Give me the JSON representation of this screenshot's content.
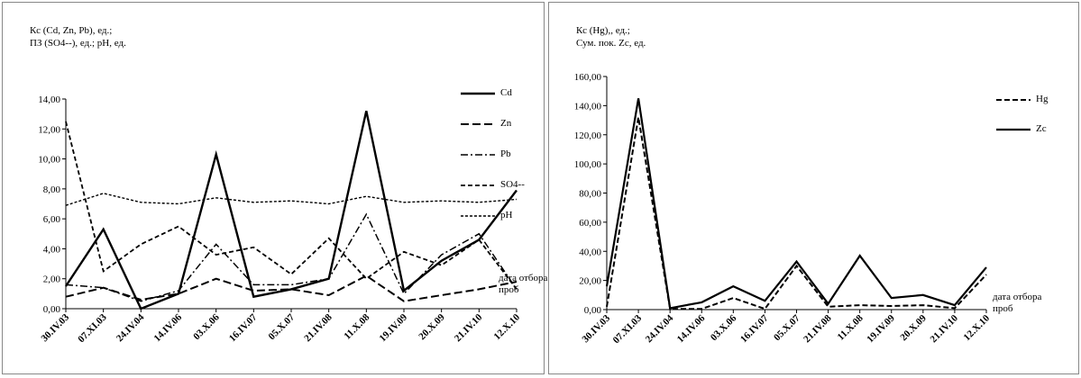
{
  "chart_data": [
    {
      "type": "line",
      "ylabel_lines": [
        "Кс (Cd, Zn, Pb),  ед.;",
        "ПЗ (SO4--), ед.; pH, ед."
      ],
      "xlabel_lines": [
        "дата отбора",
        "проб"
      ],
      "categories": [
        "30.IV.03",
        "07.XI.03",
        "24.IV.04",
        "14.IV.06",
        "03.X.06",
        "16.IV.07",
        "05.X.07",
        "21.IV.08",
        "11.X.08",
        "19.IV.09",
        "20.X.09",
        "21.IV.10",
        "12.X.10"
      ],
      "ylim": [
        0,
        14
      ],
      "yticks": [
        "0,00",
        "2,00",
        "4,00",
        "6,00",
        "8,00",
        "10,00",
        "12,00",
        "14,00"
      ],
      "legend_position": "right",
      "series": [
        {
          "name": "Cd",
          "values": [
            1.5,
            5.3,
            0.0,
            1.0,
            10.3,
            0.8,
            1.3,
            2.0,
            13.2,
            1.2,
            3.2,
            4.6,
            7.9
          ],
          "color": "#000000",
          "dash": "",
          "width": 2.4
        },
        {
          "name": "Zn",
          "values": [
            0.8,
            1.4,
            0.6,
            1.0,
            2.0,
            1.2,
            1.3,
            0.9,
            2.2,
            0.5,
            0.9,
            1.3,
            1.8
          ],
          "color": "#000000",
          "dash": "9,4",
          "width": 2
        },
        {
          "name": "Pb",
          "values": [
            1.6,
            1.4,
            0.5,
            1.2,
            4.3,
            1.6,
            1.6,
            2.0,
            6.3,
            1.0,
            3.6,
            5.0,
            1.3
          ],
          "color": "#000000",
          "dash": "8,3,2,3",
          "width": 1.5
        },
        {
          "name": "SO4--",
          "values": [
            12.5,
            2.5,
            4.3,
            5.5,
            3.6,
            4.1,
            2.3,
            4.7,
            2.0,
            3.8,
            2.9,
            4.6,
            1.3
          ],
          "color": "#000000",
          "dash": "5,3",
          "width": 1.8
        },
        {
          "name": "pH",
          "values": [
            6.9,
            7.7,
            7.1,
            7.0,
            7.4,
            7.1,
            7.2,
            7.0,
            7.5,
            7.1,
            7.2,
            7.1,
            7.3
          ],
          "color": "#000000",
          "dash": "3,2",
          "width": 1.4
        }
      ]
    },
    {
      "type": "line",
      "ylabel_lines": [
        "Кс (Hg),, ед.;",
        "Сум. пок. Zc, ед."
      ],
      "xlabel_lines": [
        "дата отбора",
        "проб"
      ],
      "categories": [
        "30.IV.03",
        "07.XI.03",
        "24.IV.04",
        "14.IV.06",
        "03.X.06",
        "16.IV.07",
        "05.X.07",
        "21.IV.08",
        "11.X.08",
        "19.IV.09",
        "20.X.09",
        "21.IV.10",
        "12.X.10"
      ],
      "ylim": [
        0,
        160
      ],
      "yticks": [
        "0,00",
        "20,00",
        "40,00",
        "60,00",
        "80,00",
        "100,00",
        "120,00",
        "140,00",
        "160,00"
      ],
      "legend_position": "right",
      "series": [
        {
          "name": "Hg",
          "values": [
            2,
            132,
            0.5,
            0.5,
            8,
            0.5,
            30,
            2,
            3,
            2.5,
            3,
            1,
            24
          ],
          "color": "#000000",
          "dash": "6,3",
          "width": 2
        },
        {
          "name": "Zc",
          "values": [
            16,
            145,
            1,
            5,
            16,
            6,
            33,
            4,
            37,
            8,
            10,
            3,
            29
          ],
          "color": "#000000",
          "dash": "",
          "width": 2.2
        }
      ]
    }
  ]
}
